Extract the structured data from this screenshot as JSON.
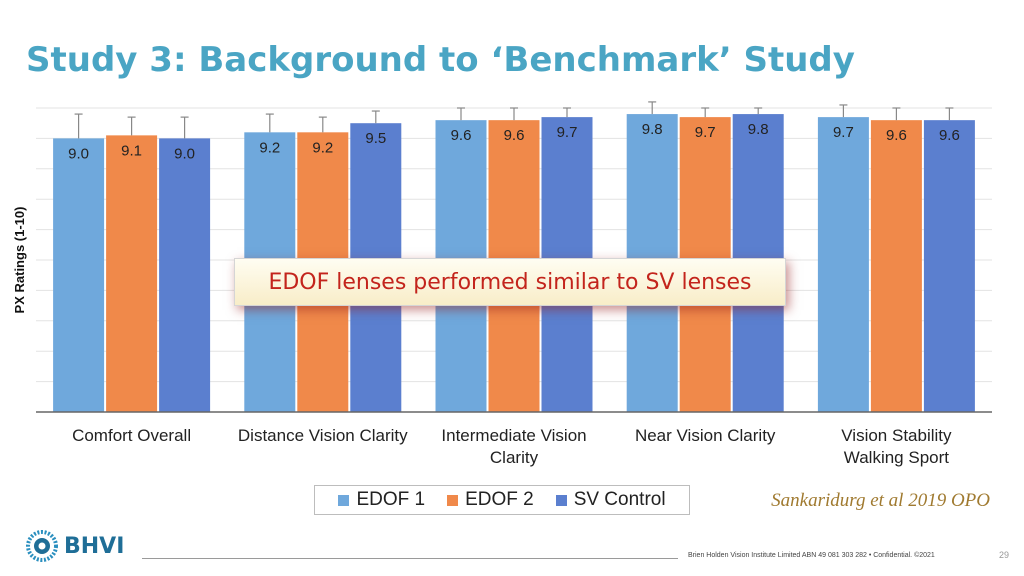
{
  "slide": {
    "title": "Study 3: Background to ‘Benchmark’ Study",
    "callout": "EDOF lenses performed similar to SV lenses",
    "citation": "Sankaridurg et al 2019 OPO",
    "logo_text": "BHVI",
    "footer": "Brien Holden Vision Institute Limited ABN 49 081 303 282 • Confidential. ©2021",
    "page_number": "29",
    "logo_icon": "bhvi-eye-logo-icon"
  },
  "chart_data": {
    "type": "bar",
    "title": "",
    "xlabel": "",
    "ylabel": "PX Ratings (1-10)",
    "ylim": [
      0,
      10
    ],
    "grid": true,
    "legend_position": "bottom",
    "error_bars": true,
    "categories": [
      [
        "Comfort Overall"
      ],
      [
        "Distance Vision Clarity"
      ],
      [
        "Intermediate Vision",
        "Clarity"
      ],
      [
        "Near Vision Clarity"
      ],
      [
        "Vision Stability",
        "Walking Sport"
      ]
    ],
    "series": [
      {
        "name": "EDOF 1",
        "color": "#6fa8dc",
        "values": [
          9.0,
          9.2,
          9.6,
          9.8,
          9.7
        ],
        "errors": [
          0.8,
          0.6,
          0.4,
          0.4,
          0.4
        ]
      },
      {
        "name": "EDOF 2",
        "color": "#f0894a",
        "values": [
          9.1,
          9.2,
          9.6,
          9.7,
          9.6
        ],
        "errors": [
          0.6,
          0.5,
          0.4,
          0.3,
          0.4
        ]
      },
      {
        "name": "SV Control",
        "color": "#5b7fcf",
        "values": [
          9.0,
          9.5,
          9.7,
          9.8,
          9.6
        ],
        "errors": [
          0.7,
          0.4,
          0.3,
          0.2,
          0.4
        ]
      }
    ]
  }
}
